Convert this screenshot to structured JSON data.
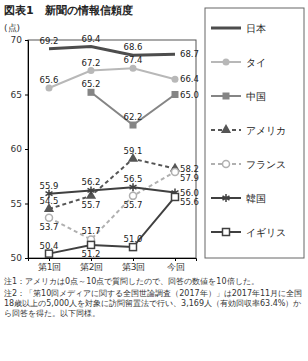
{
  "chart_data": {
    "type": "line",
    "title": "図表1　新聞の情報信頼度",
    "ylabel": "(点)",
    "categories": [
      "第1回",
      "第2回",
      "第3回",
      "今回"
    ],
    "ylim": [
      50,
      70
    ],
    "yticks": [
      50,
      55,
      60,
      65,
      70
    ],
    "grid": false,
    "legend": "right",
    "data_labels": true,
    "series": [
      {
        "name": "日本",
        "color": "#4d4d4d",
        "marker": "none",
        "line_style": "solid",
        "values": [
          69.2,
          69.4,
          68.6,
          68.7
        ]
      },
      {
        "name": "タイ",
        "color": "#b8b8b8",
        "marker": "circle",
        "line_style": "solid",
        "values": [
          65.6,
          67.2,
          67.4,
          66.4
        ]
      },
      {
        "name": "中国",
        "color": "#858585",
        "marker": "square",
        "line_style": "solid",
        "values": [
          null,
          65.2,
          62.2,
          65.0
        ],
        "value_labels": [
          null,
          "65.2",
          "62.2",
          "65.0"
        ]
      },
      {
        "name": "アメリカ",
        "color": "#555555",
        "marker": "triangle",
        "line_style": "dashed",
        "values": [
          54.5,
          55.7,
          59.1,
          58.2
        ]
      },
      {
        "name": "フランス",
        "color": "#b0b0b0",
        "marker": "circle-open",
        "line_style": "dashed",
        "values": [
          53.7,
          51.7,
          55.7,
          57.9
        ]
      },
      {
        "name": "韓国",
        "color": "#404040",
        "marker": "asterisk",
        "line_style": "solid",
        "values": [
          55.9,
          56.2,
          56.5,
          56.0
        ],
        "value_labels": [
          "55.9",
          "56.2",
          "56.5",
          "56.0"
        ]
      },
      {
        "name": "イギリス",
        "color": "#404040",
        "marker": "square-open",
        "line_style": "solid",
        "values": [
          50.4,
          51.2,
          51.0,
          55.6
        ],
        "value_labels": [
          "50.4",
          "51.2",
          "51.0",
          "55.6"
        ]
      }
    ],
    "annotations": [
      "注1：アメリカは0点～10点で質問したので、回答の数値を10倍した。",
      "注2：「第10回メディアに関する全国世論調査（2017年）」は2017年11月に全国18歳以上の5,000人を対象に訪問留置法で行い、3,169人（有効回収率63.4%）から回答を得た。以下同様。"
    ]
  }
}
